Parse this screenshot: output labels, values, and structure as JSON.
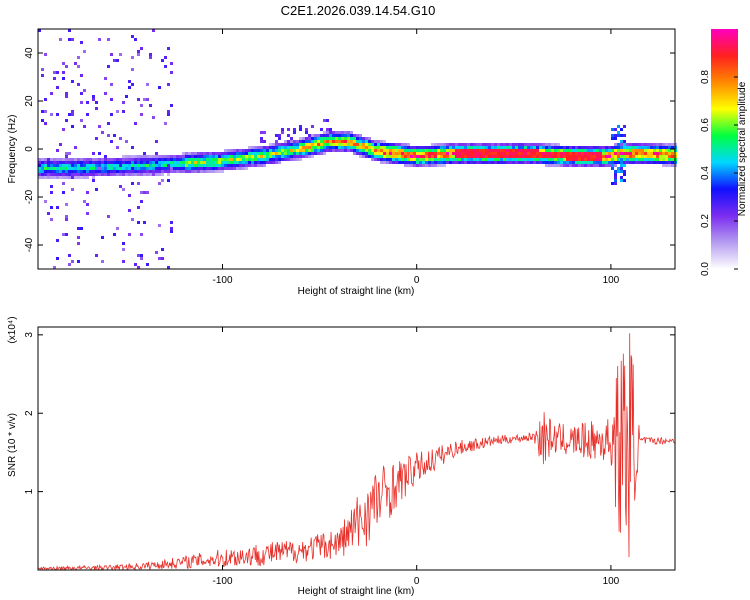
{
  "title": "C2E1.2026.039.14.54.G10",
  "chart_data": [
    {
      "type": "heatmap",
      "xlabel": "Height of straight line (km)",
      "ylabel": "Frequency (Hz)",
      "xlim": [
        -195,
        133
      ],
      "ylim": [
        -50,
        50
      ],
      "xticks": [
        -100,
        0,
        100
      ],
      "xtick_labels": [
        "-100",
        "0",
        "100"
      ],
      "yticks": [
        -40,
        -20,
        0,
        20,
        40
      ],
      "ytick_labels": [
        "-40",
        "-20",
        "0",
        "20",
        "40"
      ],
      "colorbar": {
        "label": "Normalized spectral amplitude",
        "range": [
          0,
          1
        ],
        "ticks": [
          0,
          0.2,
          0.4,
          0.6,
          0.8
        ],
        "tick_labels": [
          "0.0",
          "0.2",
          "0.4",
          "0.6",
          "0.8"
        ],
        "colors": [
          "#ffffff",
          "#b59cf0",
          "#7b2cf0",
          "#1010ff",
          "#00d8ff",
          "#00ff40",
          "#ffff00",
          "#ff8800",
          "#ff2020",
          "#ff00c0"
        ]
      },
      "ridge_frequency_hz": {
        "x": [
          -195,
          -180,
          -160,
          -140,
          -120,
          -100,
          -80,
          -60,
          -45,
          -35,
          -20,
          -10,
          0,
          20,
          40,
          60,
          80,
          95,
          100,
          105,
          115,
          133
        ],
        "freq": [
          -8,
          -8,
          -7.5,
          -7,
          -6,
          -5,
          -3,
          0,
          3,
          3,
          -1,
          -2,
          -3,
          -2,
          -2,
          -2,
          -3,
          -3,
          -3,
          -2,
          -2,
          -2.5
        ]
      },
      "grid": false
    },
    {
      "type": "line",
      "xlabel": "Height of straight line (km)",
      "ylabel": "SNR (10 * v/v)",
      "y_multiplier": "(x10⁴)",
      "xlim": [
        -195,
        133
      ],
      "ylim": [
        0,
        3.1
      ],
      "xticks": [
        -100,
        0,
        100
      ],
      "xtick_labels": [
        "-100",
        "0",
        "100"
      ],
      "yticks": [
        1,
        2,
        3
      ],
      "ytick_labels": [
        "1",
        "2",
        "3"
      ],
      "color": "#e8302a",
      "envelope": {
        "x": [
          -195,
          -160,
          -140,
          -120,
          -100,
          -80,
          -60,
          -40,
          -30,
          -20,
          -10,
          0,
          20,
          40,
          60,
          65,
          70,
          80,
          100,
          105,
          110,
          115,
          133
        ],
        "mean": [
          0.02,
          0.03,
          0.05,
          0.1,
          0.15,
          0.2,
          0.25,
          0.35,
          0.6,
          0.9,
          1.1,
          1.3,
          1.55,
          1.65,
          1.7,
          1.7,
          1.68,
          1.65,
          1.65,
          1.6,
          1.65,
          1.65,
          1.65
        ],
        "noise": [
          0.02,
          0.03,
          0.05,
          0.08,
          0.12,
          0.15,
          0.15,
          0.2,
          0.4,
          0.45,
          0.3,
          0.2,
          0.1,
          0.06,
          0.05,
          0.4,
          0.2,
          0.2,
          0.3,
          1.4,
          1.5,
          0.05,
          0.04
        ]
      },
      "grid": false
    }
  ]
}
